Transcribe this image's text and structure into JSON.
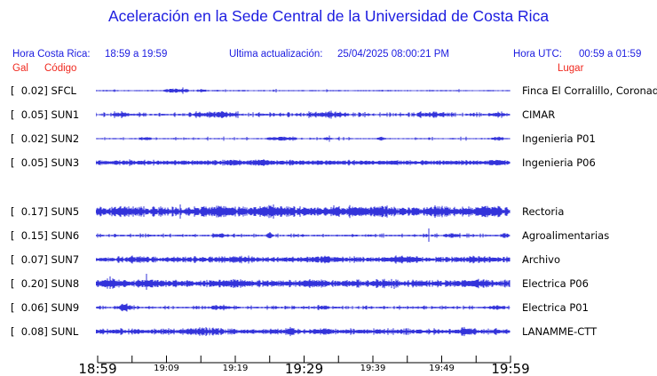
{
  "page": {
    "title": "Aceleración en la Sede Central de la Universidad de Costa Rica"
  },
  "header": {
    "hora_costa_rica_label": "Hora Costa Rica:",
    "hora_costa_rica_value": "18:59 a 19:59",
    "ultima_actualizacion_label": "Ultima actualización:",
    "ultima_actualizacion_value": "25/04/2025 08:00:21 PM",
    "hora_utc_label": "Hora UTC:",
    "hora_utc_value": "00:59 a 01:59"
  },
  "column_headers": {
    "gal": "Gal",
    "codigo": "Código",
    "lugar": "Lugar"
  },
  "colors": {
    "blue_text": "#1c1ce0",
    "red_text": "#f0281e",
    "trace_blue": "#1c1cd6",
    "axis_black": "#000000"
  },
  "chart_data": {
    "type": "line",
    "title": "Aceleración en la Sede Central de la Universidad de Costa Rica",
    "time_window_local": "18:59 a 19:59",
    "time_window_utc": "00:59 a 01:59",
    "units": "Gal (peak amplitude per channel, shown in brackets)",
    "x_axis": {
      "tick_times": [
        "18:59",
        "19:04",
        "19:09",
        "19:14",
        "19:19",
        "19:24",
        "19:29",
        "19:34",
        "19:39",
        "19:44",
        "19:49",
        "19:54",
        "19:59"
      ],
      "labels": [
        {
          "text": "18:59",
          "tick_index": 0,
          "size": "large"
        },
        {
          "text": "19:09",
          "tick_index": 2,
          "size": "small"
        },
        {
          "text": "19:19",
          "tick_index": 4,
          "size": "small"
        },
        {
          "text": "19:29",
          "tick_index": 6,
          "size": "large"
        },
        {
          "text": "19:39",
          "tick_index": 8,
          "size": "small"
        },
        {
          "text": "19:49",
          "tick_index": 10,
          "size": "small"
        },
        {
          "text": "19:59",
          "tick_index": 12,
          "size": "large"
        }
      ]
    },
    "gap_after_code": "SUN3",
    "channels": [
      {
        "gal": "0.02",
        "code": "SFCL",
        "location": "Finca El Corralillo, Coronado",
        "seed": 101,
        "band": 0.5,
        "density": 0.03,
        "blip": 1.0,
        "bursts": [
          [
            0.195,
            0.03,
            2.0
          ],
          [
            0.255,
            0.012,
            1.2
          ]
        ],
        "spikes": []
      },
      {
        "gal": "0.05",
        "code": "SUN1",
        "location": "CIMAR",
        "seed": 202,
        "band": 0.7,
        "density": 0.3,
        "blip": 1.4,
        "bursts": [
          [
            0.06,
            0.02,
            1.5
          ],
          [
            0.29,
            0.055,
            2.0
          ],
          [
            0.56,
            0.05,
            2.0
          ],
          [
            0.81,
            0.03,
            1.5
          ],
          [
            0.97,
            0.02,
            1.5
          ]
        ],
        "spikes": []
      },
      {
        "gal": "0.02",
        "code": "SUN2",
        "location": "Ingenieria P01",
        "seed": 303,
        "band": 0.5,
        "density": 0.07,
        "blip": 1.2,
        "bursts": [
          [
            0.12,
            0.015,
            1.5
          ],
          [
            0.45,
            0.035,
            1.5
          ],
          [
            0.56,
            0.01,
            1.2
          ],
          [
            0.69,
            0.01,
            1.2
          ],
          [
            0.97,
            0.015,
            1.5
          ]
        ],
        "spikes": []
      },
      {
        "gal": "0.05",
        "code": "SUN3",
        "location": "Ingenieria P06",
        "seed": 404,
        "band": 1.7,
        "density": 0.08,
        "blip": 1.0,
        "bursts": [
          [
            0.33,
            0.02,
            1.2
          ],
          [
            0.4,
            0.025,
            1.4
          ],
          [
            0.47,
            0.01,
            1.0
          ],
          [
            0.97,
            0.02,
            1.0
          ]
        ],
        "spikes": []
      },
      {
        "gal": "0.17",
        "code": "SUN5",
        "location": "Rectoria",
        "seed": 505,
        "band": 2.6,
        "density": 0.55,
        "blip": 1.6,
        "bursts": [
          [
            0.07,
            0.03,
            1.5
          ],
          [
            0.3,
            0.04,
            1.5
          ],
          [
            0.43,
            0.05,
            1.8
          ],
          [
            0.63,
            0.02,
            2.5
          ],
          [
            0.7,
            0.03,
            1.5
          ],
          [
            0.83,
            0.03,
            2.0
          ],
          [
            0.95,
            0.03,
            1.5
          ]
        ],
        "spikes": [
          [
            0.204,
            8,
            8
          ],
          [
            0.42,
            6,
            4
          ],
          [
            0.575,
            7,
            4
          ]
        ]
      },
      {
        "gal": "0.15",
        "code": "SUN6",
        "location": "Agroalimentarias",
        "seed": 606,
        "band": 0.7,
        "density": 0.15,
        "blip": 1.2,
        "bursts": [
          [
            0.3,
            0.02,
            1.3
          ],
          [
            0.42,
            0.01,
            2.0
          ],
          [
            0.86,
            0.02,
            1.5
          ],
          [
            0.99,
            0.01,
            2.0
          ]
        ],
        "spikes": [
          [
            0.805,
            8,
            7
          ],
          [
            0.42,
            4,
            3
          ]
        ]
      },
      {
        "gal": "0.07",
        "code": "SUN7",
        "location": "Archivo",
        "seed": 707,
        "band": 1.5,
        "density": 0.4,
        "blip": 1.1,
        "bursts": [
          [
            0.1,
            0.03,
            1.0
          ],
          [
            0.35,
            0.03,
            1.2
          ],
          [
            0.55,
            0.04,
            1.2
          ],
          [
            0.75,
            0.04,
            1.3
          ],
          [
            0.93,
            0.03,
            1.2
          ]
        ],
        "spikes": []
      },
      {
        "gal": "0.20",
        "code": "SUN8",
        "location": "Electrica P06",
        "seed": 808,
        "band": 1.9,
        "density": 0.45,
        "blip": 1.3,
        "bursts": [
          [
            0.03,
            0.02,
            1.5
          ],
          [
            0.12,
            0.02,
            1.5
          ],
          [
            0.33,
            0.04,
            1.3
          ],
          [
            0.52,
            0.03,
            1.2
          ],
          [
            0.7,
            0.03,
            1.3
          ],
          [
            0.92,
            0.03,
            1.5
          ]
        ],
        "spikes": [
          [
            0.034,
            8,
            6
          ],
          [
            0.122,
            11,
            7
          ],
          [
            0.72,
            3,
            6
          ]
        ]
      },
      {
        "gal": "0.06",
        "code": "SUN9",
        "location": "Electrica P01",
        "seed": 909,
        "band": 0.7,
        "density": 0.18,
        "blip": 1.1,
        "bursts": [
          [
            0.07,
            0.02,
            2.2
          ],
          [
            0.3,
            0.025,
            1.4
          ],
          [
            0.55,
            0.015,
            1.2
          ],
          [
            0.97,
            0.02,
            1.3
          ]
        ],
        "spikes": []
      },
      {
        "gal": "0.08",
        "code": "SUNL",
        "location": "LANAMME-CTT",
        "seed": 1010,
        "band": 1.6,
        "density": 0.25,
        "blip": 1.3,
        "bursts": [
          [
            0.26,
            0.05,
            1.8
          ],
          [
            0.47,
            0.012,
            2.5
          ],
          [
            0.55,
            0.02,
            1.5
          ],
          [
            0.9,
            0.02,
            1.8
          ]
        ],
        "spikes": [
          [
            0.47,
            5,
            5
          ]
        ]
      }
    ]
  }
}
